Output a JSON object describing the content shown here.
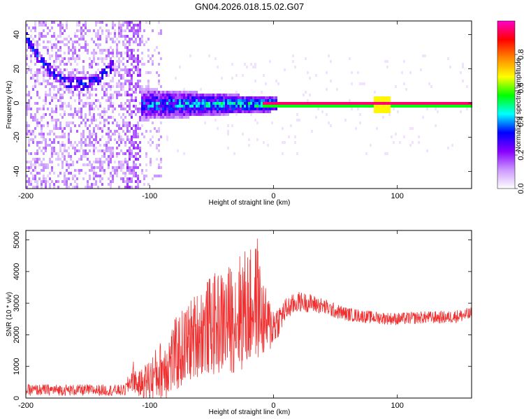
{
  "title": "GN04.2026.018.15.02.G07",
  "chart_data": [
    {
      "type": "heatmap",
      "name": "spectrogram",
      "xlabel": "Height of straight line (km)",
      "ylabel": "Frequency (Hz)",
      "xlim": [
        -200,
        160
      ],
      "ylim": [
        -50,
        48
      ],
      "x_ticks": [
        -200,
        -100,
        0,
        100
      ],
      "x_tick_labels": [
        "-200",
        "-100",
        "0",
        "100"
      ],
      "y_ticks": [
        -40,
        -20,
        0,
        20,
        40
      ],
      "y_tick_labels": [
        "-40",
        "-20",
        "0",
        "20",
        "40"
      ],
      "colorbar": {
        "label": "Normalized spectral amplitude",
        "range": [
          0,
          1
        ],
        "ticks": [
          0.0,
          0.2,
          0.4,
          0.6,
          0.8
        ],
        "tick_labels": [
          "0.0",
          "0.2",
          "0.4",
          "0.6",
          "0.8"
        ],
        "colormap": [
          "#ffffff",
          "#cc99ff",
          "#8800ff",
          "#0000ff",
          "#00ffff",
          "#00ff00",
          "#ffff00",
          "#ff8800",
          "#ff0000",
          "#ff00cc"
        ]
      },
      "features": {
        "arc": {
          "x_range": [
            -200,
            -130
          ],
          "center_x": -158,
          "min_freq": 12,
          "edge_freq": 38
        },
        "noise_band": {
          "x_range": [
            -108,
            2
          ],
          "center_freq": 0,
          "halfwidth": 8
        },
        "carrier_line": {
          "x_range": [
            -10,
            160
          ],
          "freq": 0,
          "peak_x": 87
        }
      }
    },
    {
      "type": "line",
      "name": "snr",
      "xlabel": "Height of straight line (km)",
      "ylabel": "SNR (10 * v/v)",
      "xlim": [
        -200,
        160
      ],
      "ylim": [
        0,
        5300
      ],
      "x_ticks": [
        -200,
        -100,
        0,
        100
      ],
      "x_tick_labels": [
        "-200",
        "-100",
        "0",
        "100"
      ],
      "y_ticks": [
        0,
        1000,
        2000,
        3000,
        4000,
        5000
      ],
      "y_tick_labels": [
        "0",
        "1000",
        "2000",
        "3000",
        "4000",
        "5000"
      ],
      "color": "#f03030",
      "series": [
        {
          "name": "SNR",
          "x": [
            -200,
            -180,
            -160,
            -140,
            -120,
            -113,
            -110,
            -100,
            -90,
            -80,
            -70,
            -60,
            -50,
            -40,
            -30,
            -25,
            -20,
            -15,
            -13,
            -10,
            -5,
            0,
            5,
            10,
            20,
            30,
            40,
            50,
            60,
            80,
            100,
            120,
            140,
            160
          ],
          "y": [
            250,
            260,
            250,
            250,
            240,
            700,
            400,
            600,
            900,
            1300,
            1700,
            2100,
            2300,
            2400,
            2600,
            2800,
            2800,
            3000,
            3200,
            2600,
            2300,
            2300,
            2500,
            2800,
            3050,
            3000,
            2900,
            2750,
            2650,
            2550,
            2500,
            2550,
            2550,
            2650
          ],
          "spread": [
            180,
            180,
            180,
            180,
            180,
            500,
            350,
            700,
            1000,
            1200,
            1300,
            1400,
            1600,
            1700,
            1800,
            2000,
            1900,
            1800,
            2000,
            1400,
            1000,
            700,
            500,
            380,
            320,
            300,
            260,
            240,
            220,
            200,
            200,
            200,
            200,
            220
          ]
        }
      ]
    }
  ]
}
